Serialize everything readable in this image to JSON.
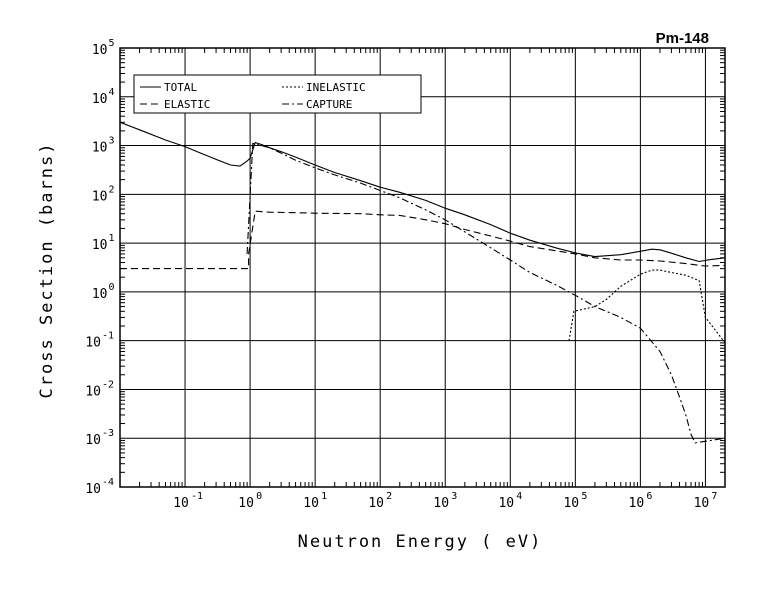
{
  "chart_data": {
    "type": "line",
    "title": "Pm-148",
    "xlabel": "Neutron Energy ( eV)",
    "ylabel": "Cross Section (barns)",
    "xscale": "log",
    "yscale": "log",
    "xlim": [
      0.01,
      20000000
    ],
    "ylim": [
      0.0001,
      100000
    ],
    "x_ticks": [
      {
        "base": "10",
        "exp": "-1",
        "value": 0.1
      },
      {
        "base": "10",
        "exp": "0",
        "value": 1
      },
      {
        "base": "10",
        "exp": "1",
        "value": 10
      },
      {
        "base": "10",
        "exp": "2",
        "value": 100
      },
      {
        "base": "10",
        "exp": "3",
        "value": 1000
      },
      {
        "base": "10",
        "exp": "4",
        "value": 10000
      },
      {
        "base": "10",
        "exp": "5",
        "value": 100000
      },
      {
        "base": "10",
        "exp": "6",
        "value": 1000000
      },
      {
        "base": "10",
        "exp": "7",
        "value": 10000000
      }
    ],
    "y_ticks": [
      {
        "base": "10",
        "exp": "5",
        "value": 100000
      },
      {
        "base": "10",
        "exp": "4",
        "value": 10000
      },
      {
        "base": "10",
        "exp": "3",
        "value": 1000
      },
      {
        "base": "10",
        "exp": "2",
        "value": 100
      },
      {
        "base": "10",
        "exp": "1",
        "value": 10
      },
      {
        "base": "10",
        "exp": "0",
        "value": 1
      },
      {
        "base": "10",
        "exp": "-1",
        "value": 0.1
      },
      {
        "base": "10",
        "exp": "-2",
        "value": 0.01
      },
      {
        "base": "10",
        "exp": "-3",
        "value": 0.001
      },
      {
        "base": "10",
        "exp": "-4",
        "value": 0.0001
      }
    ],
    "grid": true,
    "legend": {
      "placement": "top-left",
      "columns": 2
    },
    "series": [
      {
        "name": "TOTAL",
        "dash": "solid",
        "points": [
          [
            0.01,
            3000
          ],
          [
            0.02,
            2100
          ],
          [
            0.05,
            1300
          ],
          [
            0.1,
            950
          ],
          [
            0.2,
            650
          ],
          [
            0.3,
            520
          ],
          [
            0.5,
            400
          ],
          [
            0.7,
            380
          ],
          [
            0.9,
            480
          ],
          [
            1.0,
            550
          ],
          [
            1.2,
            1150
          ],
          [
            1.5,
            1050
          ],
          [
            2,
            900
          ],
          [
            3,
            750
          ],
          [
            5,
            580
          ],
          [
            10,
            400
          ],
          [
            20,
            280
          ],
          [
            50,
            190
          ],
          [
            100,
            140
          ],
          [
            200,
            110
          ],
          [
            500,
            75
          ],
          [
            1000,
            52
          ],
          [
            2000,
            38
          ],
          [
            5000,
            24
          ],
          [
            10000,
            16
          ],
          [
            20000,
            11.5
          ],
          [
            50000,
            8
          ],
          [
            100000,
            6.3
          ],
          [
            200000,
            5.3
          ],
          [
            500000,
            5.8
          ],
          [
            1000000,
            6.8
          ],
          [
            1500000,
            7.5
          ],
          [
            2000000,
            7.3
          ],
          [
            3000000,
            6.2
          ],
          [
            5000000,
            5
          ],
          [
            8000000,
            4.2
          ],
          [
            12000000,
            4.6
          ],
          [
            20000000,
            5
          ]
        ]
      },
      {
        "name": "ELASTIC",
        "dash": "long-dash",
        "points": [
          [
            0.01,
            3
          ],
          [
            0.1,
            3
          ],
          [
            0.5,
            3
          ],
          [
            0.95,
            3
          ],
          [
            0.95,
            6
          ],
          [
            1.2,
            45
          ],
          [
            2,
            43
          ],
          [
            5,
            42
          ],
          [
            10,
            41
          ],
          [
            50,
            40
          ],
          [
            100,
            38
          ],
          [
            200,
            37
          ],
          [
            500,
            30
          ],
          [
            1000,
            25
          ],
          [
            2000,
            19
          ],
          [
            5000,
            14
          ],
          [
            10000,
            11
          ],
          [
            20000,
            8.5
          ],
          [
            50000,
            7
          ],
          [
            100000,
            6
          ],
          [
            200000,
            5
          ],
          [
            500000,
            4.5
          ],
          [
            1000000,
            4.5
          ],
          [
            2000000,
            4.3
          ],
          [
            5000000,
            3.8
          ],
          [
            10000000,
            3.4
          ],
          [
            20000000,
            3.5
          ]
        ]
      },
      {
        "name": "INELASTIC",
        "dash": "dotted",
        "points": [
          [
            80000,
            0.1
          ],
          [
            95000,
            0.4
          ],
          [
            200000,
            0.5
          ],
          [
            300000,
            0.7
          ],
          [
            500000,
            1.3
          ],
          [
            1000000,
            2.3
          ],
          [
            1500000,
            2.8
          ],
          [
            2000000,
            2.8
          ],
          [
            3000000,
            2.5
          ],
          [
            5000000,
            2.2
          ],
          [
            8000000,
            1.7
          ],
          [
            10000000,
            0.3
          ],
          [
            15000000,
            0.15
          ],
          [
            20000000,
            0.09
          ]
        ]
      },
      {
        "name": "CAPTURE",
        "dash": "dash-dot",
        "points": [
          [
            0.9,
            6
          ],
          [
            1.1,
            1100
          ],
          [
            1.5,
            1000
          ],
          [
            2,
            900
          ],
          [
            3,
            700
          ],
          [
            5,
            500
          ],
          [
            10,
            350
          ],
          [
            20,
            250
          ],
          [
            50,
            170
          ],
          [
            100,
            120
          ],
          [
            200,
            85
          ],
          [
            500,
            48
          ],
          [
            1000,
            30
          ],
          [
            2000,
            17
          ],
          [
            5000,
            8
          ],
          [
            10000,
            4.5
          ],
          [
            20000,
            2.5
          ],
          [
            50000,
            1.4
          ],
          [
            100000,
            0.85
          ],
          [
            200000,
            0.5
          ],
          [
            500000,
            0.3
          ],
          [
            1000000,
            0.18
          ],
          [
            2000000,
            0.06
          ],
          [
            3000000,
            0.02
          ],
          [
            4000000,
            0.007
          ],
          [
            5000000,
            0.003
          ],
          [
            6000000,
            0.0012
          ],
          [
            7000000,
            0.0008
          ],
          [
            9000000,
            0.00085
          ],
          [
            12000000,
            0.0009
          ],
          [
            20000000,
            0.001
          ]
        ]
      }
    ]
  }
}
